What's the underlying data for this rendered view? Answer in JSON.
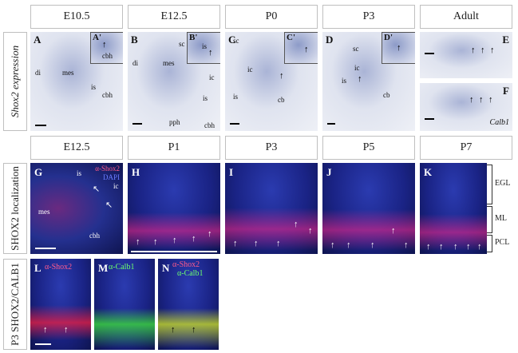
{
  "row1": {
    "label": "Shox2 expression",
    "headers": [
      "E10.5",
      "E12.5",
      "P0",
      "P3",
      "Adult"
    ],
    "panels": {
      "A": {
        "letter": "A",
        "inset": "A'",
        "labels": [
          "di",
          "mes",
          "is",
          "cbh"
        ],
        "inset_label": "cbh"
      },
      "B": {
        "letter": "B",
        "inset": "B'",
        "labels": [
          "di",
          "mes",
          "sc",
          "is",
          "cbh",
          "pph",
          "ic"
        ],
        "inset_label": "is"
      },
      "C": {
        "letter": "C",
        "inset": "C'",
        "labels": [
          "sc",
          "ic",
          "is",
          "cb"
        ]
      },
      "D": {
        "letter": "D",
        "inset": "D'",
        "labels": [
          "sc",
          "ic",
          "is",
          "cb"
        ]
      },
      "E": {
        "letter": "E"
      },
      "F": {
        "letter": "F",
        "labels": [
          "Calb1"
        ]
      }
    }
  },
  "row2": {
    "label": "SHOX2 localization",
    "headers": [
      "E12.5",
      "P1",
      "P3",
      "P5",
      "P7"
    ],
    "panels": {
      "G": {
        "letter": "G",
        "labels": [
          "mes",
          "is",
          "ic",
          "cbh"
        ],
        "stain1": "α-Shox2",
        "stain2": "DAPI"
      },
      "H": {
        "letter": "H"
      },
      "I": {
        "letter": "I"
      },
      "J": {
        "letter": "J"
      },
      "K": {
        "letter": "K"
      }
    },
    "layers": [
      "EGL",
      "ML",
      "PCL"
    ]
  },
  "row3": {
    "label": "P3 SHOX2/CALB1",
    "panels": {
      "L": {
        "letter": "L",
        "stain": "α-Shox2"
      },
      "M": {
        "letter": "M",
        "stain": "α-Calb1"
      },
      "N": {
        "letter": "N",
        "stain1": "α-Shox2",
        "stain2": "α-Calb1"
      }
    }
  },
  "colors": {
    "shox2": "#ff3b6b",
    "dapi": "#3a4cff",
    "calb1": "#5cff5c",
    "ish_stain": "#4a5aa8"
  }
}
